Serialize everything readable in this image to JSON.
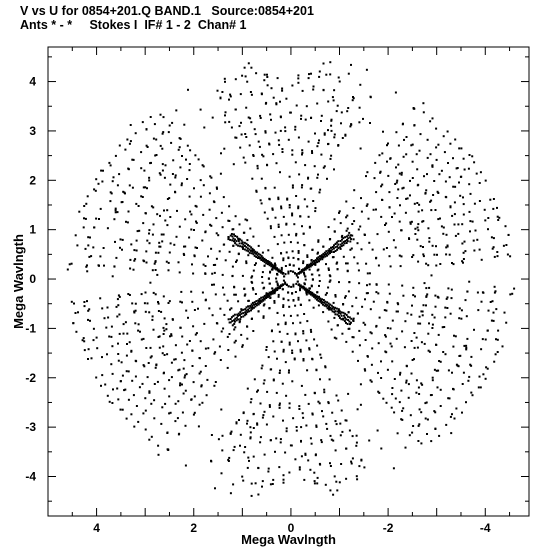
{
  "header": {
    "line1": "V vs U for 0854+201.Q BAND.1   Source:0854+201",
    "line2": "Ants * - *     Stokes I  IF# 1 - 2  Chan# 1"
  },
  "chart_data": {
    "type": "scatter",
    "title": "",
    "xlabel": "Mega Wavlngth",
    "ylabel": "Mega Wavlngth",
    "xlim": [
      5.0,
      -4.9
    ],
    "ylim": [
      -4.8,
      4.7
    ],
    "xticks": [
      4,
      2,
      0,
      -2,
      -4
    ],
    "yticks": [
      4,
      3,
      2,
      1,
      0,
      -1,
      -2,
      -3,
      -4
    ],
    "grid": false,
    "legend": "none",
    "point_color": "#000000",
    "structure": {
      "track_radii": [
        0.15,
        0.3,
        0.45,
        0.6,
        0.8,
        1.0,
        1.2,
        1.4,
        1.6,
        1.8,
        2.05,
        2.3,
        2.55,
        2.8,
        3.05,
        3.3,
        3.6,
        3.9,
        4.2,
        4.5
      ],
      "lobe_center_angles_deg": [
        30,
        150,
        210,
        330,
        90,
        270
      ],
      "dense_spokes": [
        {
          "angle_deg": 35,
          "r_min": 0.2,
          "r_max": 1.55
        },
        {
          "angle_deg": 215,
          "r_min": 0.2,
          "r_max": 1.55
        },
        {
          "angle_deg": 145,
          "r_min": 0.2,
          "r_max": 1.55
        },
        {
          "angle_deg": 325,
          "r_min": 0.2,
          "r_max": 1.55
        }
      ]
    }
  }
}
